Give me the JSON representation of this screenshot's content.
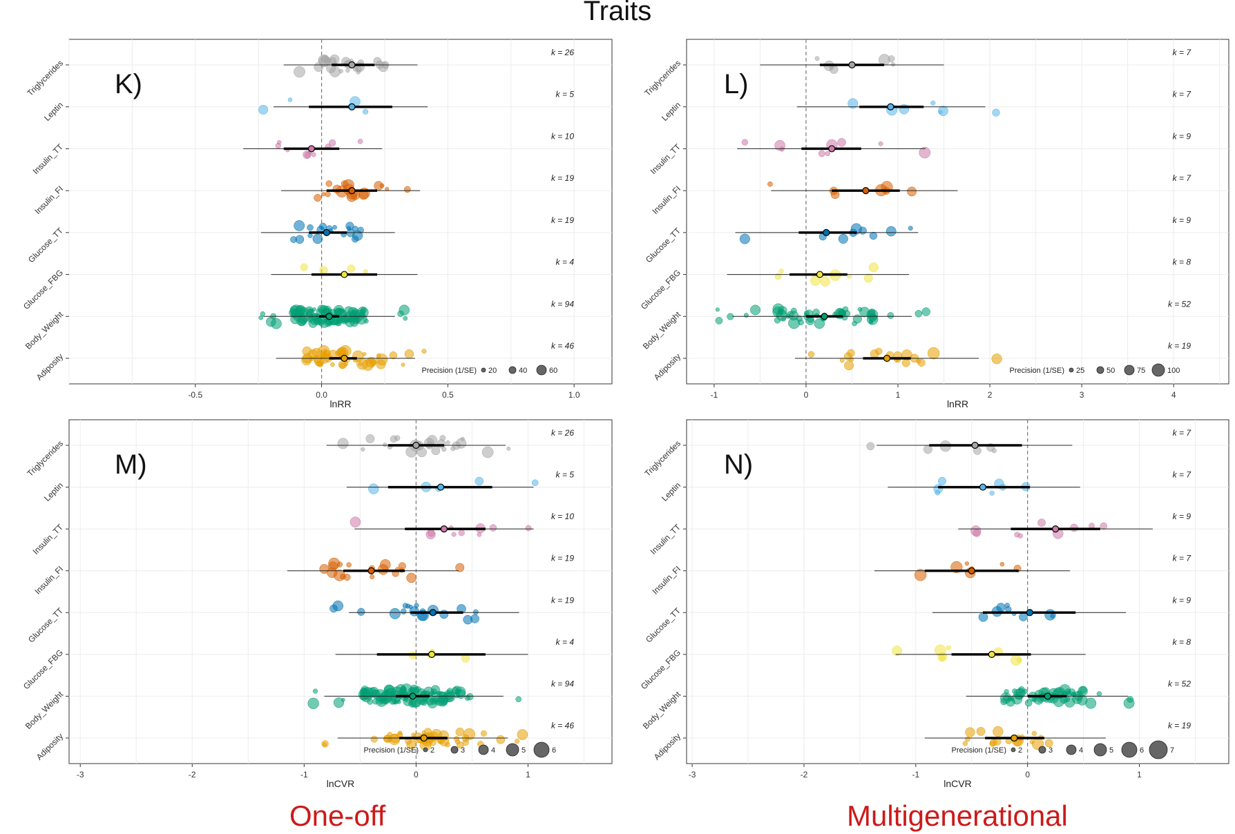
{
  "title": "Traits",
  "footer": {
    "left": "One-off",
    "right": "Multigenerational"
  },
  "traits": [
    "Triglycerides",
    "Leptin",
    "Insulin_TT",
    "Insulin_FI",
    "Glucose_TT",
    "Glucose_FBG",
    "Body_Weight",
    "Adiposity"
  ],
  "trait_colors": [
    "#a6a6a6",
    "#56b4e9",
    "#cc79a7",
    "#d55e00",
    "#0072b2",
    "#f0e442",
    "#009e73",
    "#e69f00"
  ],
  "chart_data": [
    {
      "panel": "K)",
      "type": "scatter",
      "xlabel": "lnRR",
      "xlim": [
        -1.0,
        1.15
      ],
      "xticks": [
        -0.5,
        0.0,
        0.5,
        1.0
      ],
      "xtick_labels": [
        "-0.5",
        "0.0",
        "0.5",
        "1.0"
      ],
      "k_labels": [
        "k = 26",
        "k = 5",
        "k = 10",
        "k = 19",
        "k = 19",
        "k = 4",
        "k = 94",
        "k = 46"
      ],
      "estimates": [
        {
          "mean": 0.12,
          "ci": [
            0.04,
            0.21
          ],
          "pi": [
            -0.15,
            0.38
          ]
        },
        {
          "mean": 0.12,
          "ci": [
            -0.05,
            0.28
          ],
          "pi": [
            -0.19,
            0.42
          ]
        },
        {
          "mean": -0.04,
          "ci": [
            -0.15,
            0.07
          ],
          "pi": [
            -0.31,
            0.24
          ]
        },
        {
          "mean": 0.12,
          "ci": [
            0.02,
            0.22
          ],
          "pi": [
            -0.16,
            0.39
          ]
        },
        {
          "mean": 0.02,
          "ci": [
            -0.05,
            0.1
          ],
          "pi": [
            -0.24,
            0.29
          ]
        },
        {
          "mean": 0.09,
          "ci": [
            -0.04,
            0.22
          ],
          "pi": [
            -0.2,
            0.38
          ]
        },
        {
          "mean": 0.03,
          "ci": [
            -0.01,
            0.07
          ],
          "pi": [
            -0.23,
            0.29
          ]
        },
        {
          "mean": 0.09,
          "ci": [
            0.03,
            0.14
          ],
          "pi": [
            -0.18,
            0.37
          ]
        }
      ],
      "legend": {
        "title": "Precision (1/SE)",
        "labels": [
          "20",
          "40",
          "60"
        ]
      }
    },
    {
      "panel": "L)",
      "type": "scatter",
      "xlabel": "lnRR",
      "xlim": [
        -1.3,
        4.6
      ],
      "xticks": [
        -1,
        0,
        1,
        2,
        3,
        4
      ],
      "xtick_labels": [
        "-1",
        "0",
        "1",
        "2",
        "3",
        "4"
      ],
      "k_labels": [
        "k = 7",
        "k = 7",
        "k = 9",
        "k = 7",
        "k = 9",
        "k = 8",
        "k = 52",
        "k = 19"
      ],
      "estimates": [
        {
          "mean": 0.5,
          "ci": [
            0.15,
            0.85
          ],
          "pi": [
            -0.5,
            1.5
          ]
        },
        {
          "mean": 0.92,
          "ci": [
            0.58,
            1.28
          ],
          "pi": [
            -0.1,
            1.95
          ]
        },
        {
          "mean": 0.28,
          "ci": [
            -0.05,
            0.6
          ],
          "pi": [
            -0.75,
            1.3
          ]
        },
        {
          "mean": 0.65,
          "ci": [
            0.28,
            1.02
          ],
          "pi": [
            -0.38,
            1.65
          ]
        },
        {
          "mean": 0.22,
          "ci": [
            -0.08,
            0.55
          ],
          "pi": [
            -0.77,
            1.22
          ]
        },
        {
          "mean": 0.15,
          "ci": [
            -0.18,
            0.45
          ],
          "pi": [
            -0.86,
            1.12
          ]
        },
        {
          "mean": 0.2,
          "ci": [
            0.0,
            0.4
          ],
          "pi": [
            -0.8,
            1.15
          ]
        },
        {
          "mean": 0.88,
          "ci": [
            0.62,
            1.14
          ],
          "pi": [
            -0.12,
            1.88
          ]
        }
      ],
      "legend": {
        "title": "Precision (1/SE)",
        "labels": [
          "25",
          "50",
          "75",
          "100"
        ]
      }
    },
    {
      "panel": "M)",
      "type": "scatter",
      "xlabel": "lnCVR",
      "xlim": [
        -3.1,
        1.75
      ],
      "xticks": [
        -3,
        -2,
        -1,
        0,
        1
      ],
      "xtick_labels": [
        "-3",
        "-2",
        "-1",
        "0",
        "1"
      ],
      "k_labels": [
        "k = 26",
        "k = 5",
        "k = 10",
        "k = 19",
        "k = 19",
        "k = 4",
        "k = 94",
        "k = 46"
      ],
      "estimates": [
        {
          "mean": 0.0,
          "ci": [
            -0.25,
            0.25
          ],
          "pi": [
            -0.8,
            0.8
          ]
        },
        {
          "mean": 0.22,
          "ci": [
            -0.25,
            0.68
          ],
          "pi": [
            -0.62,
            1.05
          ]
        },
        {
          "mean": 0.25,
          "ci": [
            -0.1,
            0.62
          ],
          "pi": [
            -0.55,
            1.05
          ]
        },
        {
          "mean": -0.4,
          "ci": [
            -0.65,
            -0.1
          ],
          "pi": [
            -1.15,
            0.38
          ]
        },
        {
          "mean": 0.15,
          "ci": [
            -0.05,
            0.42
          ],
          "pi": [
            -0.6,
            0.92
          ]
        },
        {
          "mean": 0.14,
          "ci": [
            -0.35,
            0.62
          ],
          "pi": [
            -0.72,
            1.0
          ]
        },
        {
          "mean": -0.03,
          "ci": [
            -0.18,
            0.12
          ],
          "pi": [
            -0.82,
            0.78
          ]
        },
        {
          "mean": 0.07,
          "ci": [
            -0.15,
            0.28
          ],
          "pi": [
            -0.7,
            0.82
          ]
        }
      ],
      "legend": {
        "title": "Precision (1/SE)",
        "labels": [
          "2",
          "3",
          "4",
          "5",
          "6"
        ]
      }
    },
    {
      "panel": "N)",
      "type": "scatter",
      "xlabel": "lnCVR",
      "xlim": [
        -3.05,
        1.8
      ],
      "xticks": [
        -3,
        -2,
        -1,
        0,
        1
      ],
      "xtick_labels": [
        "-3",
        "-2",
        "-1",
        "0",
        "1"
      ],
      "k_labels": [
        "k = 7",
        "k = 7",
        "k = 9",
        "k = 7",
        "k = 9",
        "k = 8",
        "k = 52",
        "k = 19"
      ],
      "estimates": [
        {
          "mean": -0.47,
          "ci": [
            -0.88,
            -0.05
          ],
          "pi": [
            -1.35,
            0.4
          ]
        },
        {
          "mean": -0.4,
          "ci": [
            -0.8,
            0.02
          ],
          "pi": [
            -1.25,
            0.47
          ]
        },
        {
          "mean": 0.25,
          "ci": [
            -0.15,
            0.65
          ],
          "pi": [
            -0.62,
            1.12
          ]
        },
        {
          "mean": -0.5,
          "ci": [
            -0.92,
            -0.08
          ],
          "pi": [
            -1.37,
            0.38
          ]
        },
        {
          "mean": 0.02,
          "ci": [
            -0.4,
            0.43
          ],
          "pi": [
            -0.85,
            0.88
          ]
        },
        {
          "mean": -0.32,
          "ci": [
            -0.68,
            0.03
          ],
          "pi": [
            -1.18,
            0.52
          ]
        },
        {
          "mean": 0.18,
          "ci": [
            0.0,
            0.35
          ],
          "pi": [
            -0.55,
            0.9
          ]
        },
        {
          "mean": -0.12,
          "ci": [
            -0.38,
            0.15
          ],
          "pi": [
            -0.92,
            0.7
          ]
        }
      ],
      "legend": {
        "title": "Precision (1/SE)",
        "labels": [
          "2",
          "3",
          "4",
          "5",
          "6",
          "7"
        ]
      }
    }
  ]
}
